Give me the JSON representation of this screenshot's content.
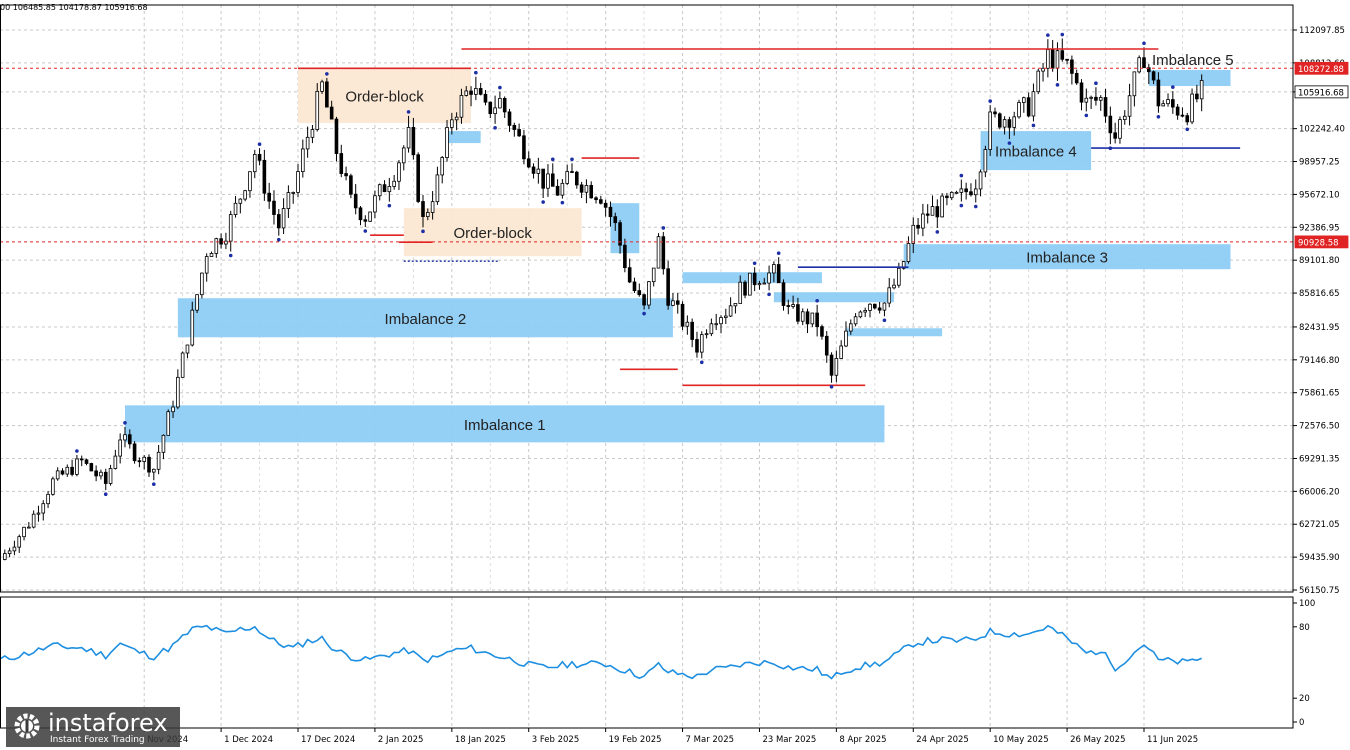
{
  "header": {
    "ohlc": "00 106485.85 104178.87 105916.68"
  },
  "brand": {
    "name": "instaforex",
    "tagline": "Instant Forex Trading",
    "icon": "gear-logo-icon"
  },
  "colors": {
    "zone_blue": "#8ecdf6",
    "order_block": "#fbe8d3",
    "level_red": "#e02424",
    "level_blue": "#1c2fa6",
    "rsi": "#1e8fe0",
    "candle": "#000000",
    "marker": "#1c2fa6"
  },
  "chart_data": [
    {
      "type": "candlestick",
      "title": "",
      "price_axis": {
        "ticks": [
          "112097.85",
          "108812.60",
          "105916.68",
          "102242.40",
          "98957.25",
          "95672.10",
          "92386.95",
          "89101.80",
          "85816.65",
          "82431.95",
          "79146.80",
          "75861.65",
          "72576.50",
          "69291.35",
          "66006.20",
          "62721.05",
          "59435.90",
          "56150.75"
        ],
        "highlight_labels": [
          {
            "text": "108272.88",
            "value": 108272.88,
            "style": "red"
          },
          {
            "text": "105916.68",
            "value": 105916.68,
            "style": "dark"
          },
          {
            "text": "90928.58",
            "value": 90928.58,
            "style": "red"
          }
        ]
      },
      "time_axis": [
        "Nov 2024",
        "1 Dec 2024",
        "17 Dec 2024",
        "2 Jan 2025",
        "18 Jan 2025",
        "3 Feb 2025",
        "19 Feb 2025",
        "7 Mar 2025",
        "23 Mar 2025",
        "8 Apr 2025",
        "24 Apr 2025",
        "10 May 2025",
        "26 May 2025",
        "11 Jun 2025"
      ],
      "time_start": "2024-10-16",
      "time_end": "2025-07-12",
      "zones": [
        {
          "label": "Imbalance 1",
          "kind": "imbalance",
          "from": "2024-11-11",
          "to": "2025-04-18",
          "low": 70900,
          "high": 74600
        },
        {
          "label": "Imbalance 2",
          "kind": "imbalance",
          "from": "2024-11-22",
          "to": "2025-03-05",
          "low": 81400,
          "high": 85300
        },
        {
          "label": "Imbalance 3",
          "kind": "imbalance",
          "from": "2025-04-22",
          "to": "2025-06-29",
          "low": 88200,
          "high": 90700
        },
        {
          "label": "Imbalance 4",
          "kind": "imbalance",
          "from": "2025-05-08",
          "to": "2025-05-31",
          "low": 98100,
          "high": 102000
        },
        {
          "label": "Imbalance 5",
          "kind": "imbalance",
          "from": "2025-06-12",
          "to": "2025-06-29",
          "low": 106500,
          "high": 108100
        },
        {
          "label": "Order-block",
          "kind": "order",
          "from": "2024-12-17",
          "to": "2025-01-22",
          "low": 102800,
          "high": 108300
        },
        {
          "label": "Order-block",
          "kind": "order",
          "from": "2025-01-08",
          "to": "2025-02-14",
          "low": 89500,
          "high": 94300
        },
        {
          "label": "",
          "kind": "imbalance",
          "from": "2025-01-17",
          "to": "2025-01-24",
          "low": 100800,
          "high": 102000
        },
        {
          "label": "",
          "kind": "imbalance",
          "from": "2025-02-20",
          "to": "2025-02-26",
          "low": 89800,
          "high": 94800
        },
        {
          "label": "",
          "kind": "imbalance",
          "from": "2025-03-07",
          "to": "2025-04-05",
          "low": 86800,
          "high": 87900
        },
        {
          "label": "",
          "kind": "imbalance",
          "from": "2025-03-26",
          "to": "2025-04-20",
          "low": 84900,
          "high": 85900
        },
        {
          "label": "",
          "kind": "imbalance",
          "from": "2025-04-10",
          "to": "2025-04-30",
          "low": 81500,
          "high": 82300
        }
      ],
      "levels": [
        {
          "color": "red",
          "from": "2025-01-20",
          "to": "2025-06-14",
          "value": 110200
        },
        {
          "color": "red",
          "from": "2024-12-17",
          "to": "2025-01-22",
          "value": 108272.88
        },
        {
          "color": "red",
          "from": "2025-01-01",
          "to": "2025-01-08",
          "value": 91600
        },
        {
          "color": "red",
          "from": "2025-01-07",
          "to": "2025-01-14",
          "value": 90900
        },
        {
          "color": "red",
          "from": "2025-02-14",
          "to": "2025-02-26",
          "value": 99300
        },
        {
          "color": "red",
          "from": "2025-02-22",
          "to": "2025-03-06",
          "value": 78200
        },
        {
          "color": "red",
          "from": "2025-03-07",
          "to": "2025-04-14",
          "value": 76600
        },
        {
          "color": "blue",
          "from": "2025-03-31",
          "to": "2025-04-23",
          "value": 88400
        },
        {
          "color": "blue",
          "from": "2025-05-31",
          "to": "2025-07-01",
          "value": 100300
        },
        {
          "color": "blue-dotted",
          "from": "2025-01-08",
          "to": "2025-01-28",
          "value": 89000
        }
      ],
      "dashed_levels": [
        108272.88,
        90928.58
      ],
      "price_path": [
        [
          "2024-10-16",
          59200
        ],
        [
          "2024-10-22",
          62800
        ],
        [
          "2024-10-27",
          67000
        ],
        [
          "2024-11-02",
          69000
        ],
        [
          "2024-11-07",
          66800
        ],
        [
          "2024-11-10",
          71500
        ],
        [
          "2024-11-13",
          69800
        ],
        [
          "2024-11-17",
          68300
        ],
        [
          "2024-11-21",
          75000
        ],
        [
          "2024-11-25",
          83500
        ],
        [
          "2024-11-28",
          90000
        ],
        [
          "2024-12-02",
          92000
        ],
        [
          "2024-12-05",
          95500
        ],
        [
          "2024-12-08",
          99800
        ],
        [
          "2024-12-11",
          95000
        ],
        [
          "2024-12-13",
          92500
        ],
        [
          "2024-12-16",
          96000
        ],
        [
          "2024-12-19",
          101500
        ],
        [
          "2024-12-22",
          106500
        ],
        [
          "2024-12-25",
          100000
        ],
        [
          "2024-12-28",
          95000
        ],
        [
          "2024-12-31",
          93500
        ],
        [
          "2025-01-03",
          95800
        ],
        [
          "2025-01-06",
          98000
        ],
        [
          "2025-01-09",
          101500
        ],
        [
          "2025-01-12",
          93000
        ],
        [
          "2025-01-15",
          97000
        ],
        [
          "2025-01-18",
          103500
        ],
        [
          "2025-01-22",
          106500
        ],
        [
          "2025-01-25",
          104000
        ],
        [
          "2025-01-28",
          105000
        ],
        [
          "2025-01-31",
          102000
        ],
        [
          "2025-02-03",
          99500
        ],
        [
          "2025-02-06",
          97000
        ],
        [
          "2025-02-09",
          96000
        ],
        [
          "2025-02-12",
          97500
        ],
        [
          "2025-02-15",
          96500
        ],
        [
          "2025-02-18",
          95600
        ],
        [
          "2025-02-21",
          92500
        ],
        [
          "2025-02-24",
          87000
        ],
        [
          "2025-02-27",
          84200
        ],
        [
          "2025-03-02",
          91000
        ],
        [
          "2025-03-04",
          85500
        ],
        [
          "2025-03-07",
          83000
        ],
        [
          "2025-03-10",
          80500
        ],
        [
          "2025-03-13",
          83500
        ],
        [
          "2025-03-16",
          84000
        ],
        [
          "2025-03-19",
          86200
        ],
        [
          "2025-03-23",
          87500
        ],
        [
          "2025-03-26",
          87800
        ],
        [
          "2025-03-29",
          84000
        ],
        [
          "2025-04-01",
          83400
        ],
        [
          "2025-04-04",
          82800
        ],
        [
          "2025-04-07",
          77500
        ],
        [
          "2025-04-09",
          80200
        ],
        [
          "2025-04-12",
          84100
        ],
        [
          "2025-04-15",
          85000
        ],
        [
          "2025-04-18",
          84800
        ],
        [
          "2025-04-21",
          87500
        ],
        [
          "2025-04-24",
          92000
        ],
        [
          "2025-04-27",
          93800
        ],
        [
          "2025-04-30",
          94500
        ],
        [
          "2025-05-04",
          95500
        ],
        [
          "2025-05-07",
          97000
        ],
        [
          "2025-05-10",
          103000
        ],
        [
          "2025-05-14",
          103500
        ],
        [
          "2025-05-18",
          104500
        ],
        [
          "2025-05-22",
          109500
        ],
        [
          "2025-05-26",
          108500
        ],
        [
          "2025-05-30",
          104800
        ],
        [
          "2025-06-02",
          105200
        ],
        [
          "2025-06-05",
          101500
        ],
        [
          "2025-06-08",
          105600
        ],
        [
          "2025-06-11",
          109500
        ],
        [
          "2025-06-14",
          105000
        ],
        [
          "2025-06-17",
          104300
        ],
        [
          "2025-06-20",
          104000
        ],
        [
          "2025-06-23",
          105916.68
        ]
      ]
    },
    {
      "type": "line",
      "title": "",
      "name": "oscillator",
      "ticks": [
        "100",
        "80",
        "20",
        "0"
      ],
      "ylim": [
        0,
        100
      ],
      "path": [
        [
          "2024-10-16",
          52
        ],
        [
          "2024-10-22",
          58
        ],
        [
          "2024-10-27",
          64
        ],
        [
          "2024-11-02",
          62
        ],
        [
          "2024-11-07",
          56
        ],
        [
          "2024-11-10",
          66
        ],
        [
          "2024-11-13",
          60
        ],
        [
          "2024-11-17",
          55
        ],
        [
          "2024-11-21",
          64
        ],
        [
          "2024-11-25",
          78
        ],
        [
          "2024-11-28",
          80
        ],
        [
          "2024-12-02",
          74
        ],
        [
          "2024-12-05",
          78
        ],
        [
          "2024-12-08",
          80
        ],
        [
          "2024-12-11",
          70
        ],
        [
          "2024-12-13",
          66
        ],
        [
          "2024-12-16",
          62
        ],
        [
          "2024-12-19",
          68
        ],
        [
          "2024-12-22",
          70
        ],
        [
          "2024-12-25",
          60
        ],
        [
          "2024-12-28",
          55
        ],
        [
          "2024-12-31",
          52
        ],
        [
          "2025-01-03",
          55
        ],
        [
          "2025-01-06",
          58
        ],
        [
          "2025-01-09",
          60
        ],
        [
          "2025-01-12",
          52
        ],
        [
          "2025-01-15",
          54
        ],
        [
          "2025-01-18",
          60
        ],
        [
          "2025-01-22",
          62
        ],
        [
          "2025-01-25",
          58
        ],
        [
          "2025-01-28",
          55
        ],
        [
          "2025-01-31",
          52
        ],
        [
          "2025-02-03",
          48
        ],
        [
          "2025-02-06",
          46
        ],
        [
          "2025-02-09",
          47
        ],
        [
          "2025-02-12",
          49
        ],
        [
          "2025-02-15",
          48
        ],
        [
          "2025-02-18",
          50
        ],
        [
          "2025-02-21",
          46
        ],
        [
          "2025-02-24",
          42
        ],
        [
          "2025-02-27",
          38
        ],
        [
          "2025-03-02",
          48
        ],
        [
          "2025-03-04",
          42
        ],
        [
          "2025-03-07",
          40
        ],
        [
          "2025-03-10",
          38
        ],
        [
          "2025-03-13",
          44
        ],
        [
          "2025-03-16",
          45
        ],
        [
          "2025-03-19",
          48
        ],
        [
          "2025-03-23",
          50
        ],
        [
          "2025-03-26",
          50
        ],
        [
          "2025-03-29",
          46
        ],
        [
          "2025-04-01",
          45
        ],
        [
          "2025-04-04",
          44
        ],
        [
          "2025-04-07",
          36
        ],
        [
          "2025-04-09",
          42
        ],
        [
          "2025-04-12",
          46
        ],
        [
          "2025-04-15",
          48
        ],
        [
          "2025-04-18",
          50
        ],
        [
          "2025-04-21",
          58
        ],
        [
          "2025-04-24",
          66
        ],
        [
          "2025-04-27",
          68
        ],
        [
          "2025-04-30",
          69
        ],
        [
          "2025-05-04",
          68
        ],
        [
          "2025-05-07",
          70
        ],
        [
          "2025-05-10",
          76
        ],
        [
          "2025-05-14",
          74
        ],
        [
          "2025-05-18",
          74
        ],
        [
          "2025-05-22",
          80
        ],
        [
          "2025-05-26",
          70
        ],
        [
          "2025-05-30",
          58
        ],
        [
          "2025-06-02",
          60
        ],
        [
          "2025-06-05",
          46
        ],
        [
          "2025-06-08",
          55
        ],
        [
          "2025-06-11",
          66
        ],
        [
          "2025-06-14",
          52
        ],
        [
          "2025-06-17",
          51
        ],
        [
          "2025-06-20",
          50
        ],
        [
          "2025-06-23",
          54
        ]
      ]
    }
  ]
}
